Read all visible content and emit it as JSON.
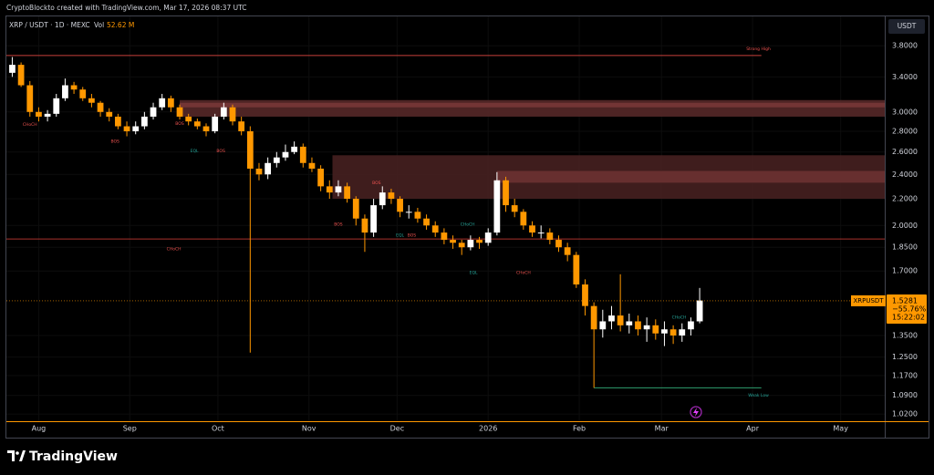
{
  "chart_data": {
    "type": "candlestick",
    "watermark": "CryptoBlockto created with TradingView.com, Mar 17, 2026 08:37 UTC",
    "title": "XRP / USDT · 1D · MEXC",
    "volume_name": "Vol",
    "volume": {
      "value": 52.62,
      "label": "52.62 M"
    },
    "currency": "USDT",
    "brand": "TradingView",
    "log_scale": true,
    "up_color": "#ffffff",
    "down_color": "#ff9800",
    "x": [
      0,
      3,
      6,
      9,
      12,
      15,
      18,
      21,
      24,
      27,
      30,
      33,
      36,
      39,
      42,
      45,
      48,
      51,
      54,
      57,
      60,
      63,
      66,
      69,
      72,
      75,
      78,
      81,
      84,
      87,
      90,
      93,
      96,
      99,
      102,
      105,
      108,
      111,
      114,
      117,
      120,
      123,
      126,
      129,
      132,
      135,
      138,
      141,
      144,
      147,
      150,
      153,
      156,
      159,
      162,
      165,
      168,
      171,
      174,
      177,
      180,
      183,
      186,
      189,
      192,
      195,
      198,
      201,
      204,
      207,
      210,
      213,
      216,
      219,
      222,
      225,
      228,
      231,
      234
    ],
    "open": [
      3.45,
      3.55,
      3.3,
      3.0,
      2.95,
      2.98,
      3.15,
      3.3,
      3.25,
      3.15,
      3.1,
      3.0,
      2.95,
      2.85,
      2.8,
      2.85,
      2.95,
      3.05,
      3.15,
      3.05,
      2.95,
      2.9,
      2.85,
      2.8,
      2.95,
      3.05,
      2.9,
      2.8,
      2.45,
      2.4,
      2.5,
      2.55,
      2.6,
      2.65,
      2.5,
      2.45,
      2.3,
      2.25,
      2.3,
      2.2,
      2.05,
      1.95,
      2.15,
      2.25,
      2.2,
      2.1,
      2.1,
      2.05,
      2.0,
      1.95,
      1.9,
      1.88,
      1.85,
      1.9,
      1.88,
      1.95,
      2.35,
      2.15,
      2.1,
      2.0,
      1.95,
      1.95,
      1.9,
      1.85,
      1.8,
      1.62,
      1.5,
      1.38,
      1.42,
      1.45,
      1.4,
      1.42,
      1.38,
      1.4,
      1.36,
      1.38,
      1.35,
      1.38,
      1.42
    ],
    "high": [
      3.65,
      3.58,
      3.35,
      3.05,
      3.02,
      3.2,
      3.38,
      3.34,
      3.28,
      3.2,
      3.12,
      3.04,
      2.98,
      2.9,
      2.9,
      3.0,
      3.1,
      3.2,
      3.18,
      3.08,
      2.98,
      2.93,
      2.88,
      2.98,
      3.1,
      3.08,
      2.95,
      2.85,
      2.5,
      2.55,
      2.6,
      2.67,
      2.7,
      2.68,
      2.55,
      2.48,
      2.35,
      2.35,
      2.33,
      2.22,
      2.08,
      2.2,
      2.3,
      2.28,
      2.22,
      2.15,
      2.13,
      2.08,
      2.03,
      1.98,
      1.93,
      1.9,
      1.93,
      1.92,
      1.98,
      2.42,
      2.38,
      2.2,
      2.12,
      2.03,
      2.0,
      1.98,
      1.93,
      1.88,
      1.82,
      1.65,
      1.52,
      1.48,
      1.5,
      1.68,
      1.46,
      1.45,
      1.44,
      1.43,
      1.42,
      1.4,
      1.41,
      1.44,
      1.6
    ],
    "low": [
      3.4,
      3.28,
      2.95,
      2.9,
      2.9,
      2.95,
      3.12,
      3.2,
      3.12,
      3.05,
      2.95,
      2.9,
      2.82,
      2.75,
      2.77,
      2.82,
      2.92,
      3.02,
      3.0,
      2.92,
      2.86,
      2.82,
      2.75,
      2.78,
      2.92,
      2.86,
      2.76,
      1.27,
      2.35,
      2.36,
      2.46,
      2.52,
      2.58,
      2.46,
      2.42,
      2.26,
      2.2,
      2.22,
      2.17,
      2.0,
      1.82,
      1.92,
      2.12,
      2.16,
      2.06,
      2.05,
      2.02,
      1.97,
      1.92,
      1.87,
      1.84,
      1.8,
      1.83,
      1.84,
      1.86,
      1.93,
      2.1,
      2.06,
      1.97,
      1.92,
      1.91,
      1.87,
      1.82,
      1.76,
      1.6,
      1.45,
      1.12,
      1.34,
      1.38,
      1.37,
      1.36,
      1.35,
      1.32,
      1.33,
      1.3,
      1.31,
      1.32,
      1.35,
      1.41
    ],
    "close": [
      3.55,
      3.3,
      3.0,
      2.95,
      2.98,
      3.15,
      3.3,
      3.25,
      3.15,
      3.1,
      3.0,
      2.95,
      2.85,
      2.8,
      2.85,
      2.95,
      3.05,
      3.15,
      3.05,
      2.95,
      2.9,
      2.85,
      2.8,
      2.95,
      3.05,
      2.9,
      2.8,
      2.45,
      2.4,
      2.5,
      2.55,
      2.6,
      2.65,
      2.5,
      2.45,
      2.3,
      2.25,
      2.3,
      2.2,
      2.05,
      1.95,
      2.15,
      2.25,
      2.2,
      2.1,
      2.1,
      2.05,
      2.0,
      1.95,
      1.9,
      1.88,
      1.85,
      1.9,
      1.88,
      1.95,
      2.35,
      2.15,
      2.1,
      2.0,
      1.95,
      1.95,
      1.9,
      1.85,
      1.8,
      1.62,
      1.5,
      1.38,
      1.42,
      1.45,
      1.4,
      1.42,
      1.38,
      1.4,
      1.36,
      1.38,
      1.35,
      1.38,
      1.42,
      1.53
    ],
    "xlim": [
      -2,
      297
    ],
    "xticks": [
      {
        "value": 9,
        "label": "Aug"
      },
      {
        "value": 40,
        "label": "Sep"
      },
      {
        "value": 70,
        "label": "Oct"
      },
      {
        "value": 101,
        "label": "Nov"
      },
      {
        "value": 131,
        "label": "Dec"
      },
      {
        "value": 162,
        "label": "2026"
      },
      {
        "value": 193,
        "label": "Feb"
      },
      {
        "value": 221,
        "label": "Mar"
      },
      {
        "value": 252,
        "label": "Apr"
      },
      {
        "value": 282,
        "label": "May"
      }
    ],
    "ylim": [
      0.994,
      4.22
    ],
    "yticks": [
      {
        "value": 3.8,
        "label": "3.8000"
      },
      {
        "value": 3.4,
        "label": "3.4000"
      },
      {
        "value": 3.0,
        "label": "3.0000"
      },
      {
        "value": 2.8,
        "label": "2.8000"
      },
      {
        "value": 2.6,
        "label": "2.6000"
      },
      {
        "value": 2.4,
        "label": "2.4000"
      },
      {
        "value": 2.2,
        "label": "2.2000"
      },
      {
        "value": 2.0,
        "label": "2.0000"
      },
      {
        "value": 1.85,
        "label": "1.8500"
      },
      {
        "value": 1.7,
        "label": "1.7000"
      },
      {
        "value": 1.35,
        "label": "1.3500"
      },
      {
        "value": 1.25,
        "label": "1.2500"
      },
      {
        "value": 1.17,
        "label": "1.1700"
      },
      {
        "value": 1.09,
        "label": "1.0900"
      },
      {
        "value": 1.02,
        "label": "1.0200"
      }
    ],
    "price_tag": {
      "symbol": "XRPUSDT",
      "price": 1.5281,
      "change": {
        "value": -55.76,
        "label": "−55.76%"
      },
      "countdown": "15:22:02"
    },
    "zones": [
      {
        "start": 57,
        "low": 2.95,
        "high": 3.13,
        "color": "#5a2a2a"
      },
      {
        "start": 57,
        "low": 3.05,
        "high": 3.1,
        "color": "#7a3838"
      },
      {
        "start": 109,
        "low": 2.2,
        "high": 2.57,
        "color": "#4a2222"
      },
      {
        "start": 165,
        "low": 2.33,
        "high": 2.43,
        "color": "#6e3232"
      }
    ],
    "levels": [
      {
        "start": -2,
        "end": 255,
        "price": 3.67,
        "color": "#c8403a"
      },
      {
        "start": -2,
        "end": 297,
        "price": 1.906,
        "color": "#a8322c"
      },
      {
        "start": 198,
        "end": 255,
        "price": 1.12,
        "color": "#2e9e6e"
      }
    ],
    "annotations": [
      {
        "text": "CHoCH",
        "x": 6,
        "price": 2.87,
        "color": "#ef5350"
      },
      {
        "text": "BOS",
        "x": 35,
        "price": 2.7,
        "color": "#ef5350"
      },
      {
        "text": "BOS",
        "x": 57,
        "price": 2.88,
        "color": "#ef5350"
      },
      {
        "text": "EQL",
        "x": 62,
        "price": 2.61,
        "color": "#26a69a"
      },
      {
        "text": "BOS",
        "x": 71,
        "price": 2.61,
        "color": "#ef5350"
      },
      {
        "text": "CHoCH",
        "x": 55,
        "price": 1.84,
        "color": "#ef5350"
      },
      {
        "text": "BOS",
        "x": 111,
        "price": 2.01,
        "color": "#ef5350"
      },
      {
        "text": "BOS",
        "x": 124,
        "price": 2.33,
        "color": "#ef5350"
      },
      {
        "text": "EQL",
        "x": 132,
        "price": 1.93,
        "color": "#26a69a"
      },
      {
        "text": "BOS",
        "x": 136,
        "price": 1.93,
        "color": "#ef5350"
      },
      {
        "text": "CHoCH",
        "x": 155,
        "price": 2.01,
        "color": "#26a69a"
      },
      {
        "text": "EQL",
        "x": 157,
        "price": 1.69,
        "color": "#26a69a"
      },
      {
        "text": "CHoCH",
        "x": 174,
        "price": 1.69,
        "color": "#ef5350"
      },
      {
        "text": "CHoCH",
        "x": 227,
        "price": 1.44,
        "color": "#26a69a"
      },
      {
        "text": "Strong High",
        "x": 254,
        "price": 3.76,
        "color": "#ef5350"
      },
      {
        "text": "Weak Low",
        "x": 254,
        "price": 1.09,
        "color": "#26a69a"
      }
    ]
  }
}
